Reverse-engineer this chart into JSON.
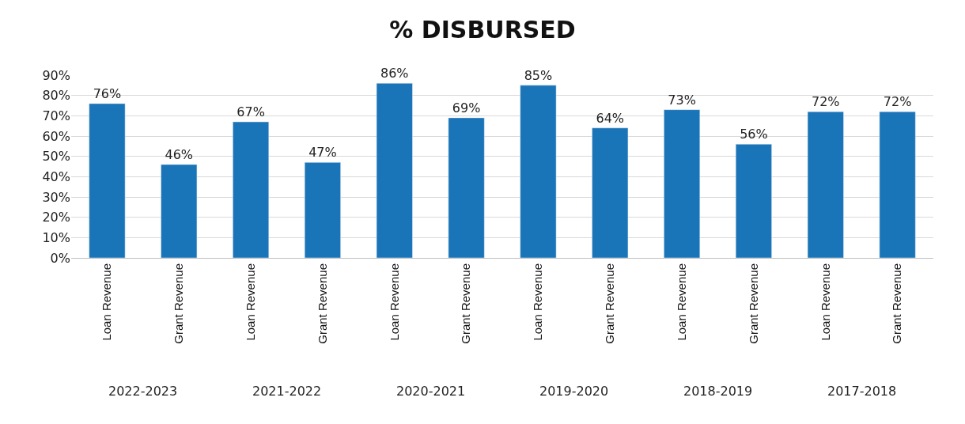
{
  "chart_data": {
    "type": "bar",
    "title": "% DISBURSED",
    "categories": [
      "Loan Revenue",
      "Grant Revenue",
      "Loan Revenue",
      "Grant Revenue",
      "Loan Revenue",
      "Grant Revenue",
      "Loan Revenue",
      "Grant Revenue",
      "Loan Revenue",
      "Grant Revenue",
      "Loan Revenue",
      "Grant Revenue"
    ],
    "values": [
      76,
      46,
      67,
      47,
      86,
      69,
      85,
      64,
      73,
      56,
      72,
      72
    ],
    "value_labels": [
      "76%",
      "46%",
      "67%",
      "47%",
      "86%",
      "69%",
      "85%",
      "64%",
      "73%",
      "56%",
      "72%",
      "72%"
    ],
    "color": "#1a74b8",
    "ylim": [
      0,
      90
    ],
    "yticks": [
      {
        "value": 0,
        "label": "0%"
      },
      {
        "value": 10,
        "label": "10%"
      },
      {
        "value": 20,
        "label": "20%"
      },
      {
        "value": 30,
        "label": "30%"
      },
      {
        "value": 40,
        "label": "40%"
      },
      {
        "value": 50,
        "label": "50%"
      },
      {
        "value": 60,
        "label": "60%"
      },
      {
        "value": 70,
        "label": "70%"
      },
      {
        "value": 80,
        "label": "80%"
      },
      {
        "value": 90,
        "label": "90%"
      }
    ],
    "annotations": [
      "2022-2023",
      "2021-2022",
      "2020-2021",
      "2019-2020",
      "2018-2019",
      "2017-2018"
    ],
    "grid": "y"
  }
}
